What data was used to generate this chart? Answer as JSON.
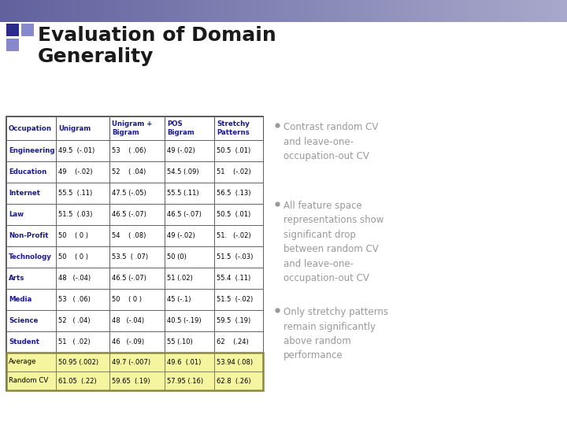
{
  "title_line1": "Evaluation of Domain",
  "title_line2": "Generality",
  "title_color": "#1a1a1a",
  "title_fontsize": 18,
  "bg_color": "#ffffff",
  "highlight_bg": "#f5f5a0",
  "highlight_border": "#888844",
  "col_headers": [
    "Occupation",
    "Unigram",
    "Unigram +\nBigram",
    "POS\nBigram",
    "Stretchy\nPatterns"
  ],
  "col_header_color": "#1a1a8e",
  "row_label_color": "#1a1a8e",
  "row_labels": [
    "Engineering",
    "Education",
    "Internet",
    "Law",
    "Non-Profit",
    "Technology",
    "Arts",
    "Media",
    "Science",
    "Student"
  ],
  "table_data": [
    [
      "49.5  (-.01)",
      "53    ( .06)",
      "49 (-.02)",
      "50.5  (.01)"
    ],
    [
      "49    (-.02)",
      "52    ( .04)",
      "54.5 (.09)",
      "51    (-.02)"
    ],
    [
      "55.5  (.11)",
      "47.5 (-.05)",
      "55.5 (.11)",
      "56.5  (.13)"
    ],
    [
      "51.5  (.03)",
      "46.5 (-.07)",
      "46.5 (-.07)",
      "50.5  (.01)"
    ],
    [
      "50    ( 0 )",
      "54    ( .08)",
      "49 (-.02)",
      "51.   (-.02)"
    ],
    [
      "50    ( 0 )",
      "53.5  ( .07)",
      "50 (0)",
      "51.5  (-.03)"
    ],
    [
      "48   (-.04)",
      "46.5 (-.07)",
      "51 (.02)",
      "55.4  (.11)"
    ],
    [
      "53   ( .06)",
      "50    ( 0 )",
      "45 (-.1)",
      "51.5  (-.02)"
    ],
    [
      "52   ( .04)",
      "48   (-.04)",
      "40.5 (-.19)",
      "59.5  (.19)"
    ],
    [
      "51   ( .02)",
      "46   (-.09)",
      "55 (.10)",
      "62    (.24)"
    ]
  ],
  "avg_row": [
    "50.95 (.002)",
    "49.7 (-.007)",
    "49.6  (.01)",
    "53.94 (.08)"
  ],
  "random_cv_row": [
    "61.05  (.22)",
    "59.65  (.19)",
    "57.95 (.16)",
    "62.8  (.26)"
  ],
  "bullet_points": [
    "Contrast random CV\nand leave-one-\noccupation-out CV",
    "All feature space\nrepresentations show\nsignificant drop\nbetween random CV\nand leave-one-\noccupation-out CV",
    "Only stretchy patterns\nremain significantly\nabove random\nperformance"
  ],
  "bullet_color": "#999999",
  "bullet_fontsize": 8.5,
  "grad_colors": [
    "#7070b0",
    "#9090c0",
    "#b0b0d0",
    "#c8c8e0"
  ],
  "sq_dark": "#2b2b8b",
  "sq_light": "#8888cc"
}
